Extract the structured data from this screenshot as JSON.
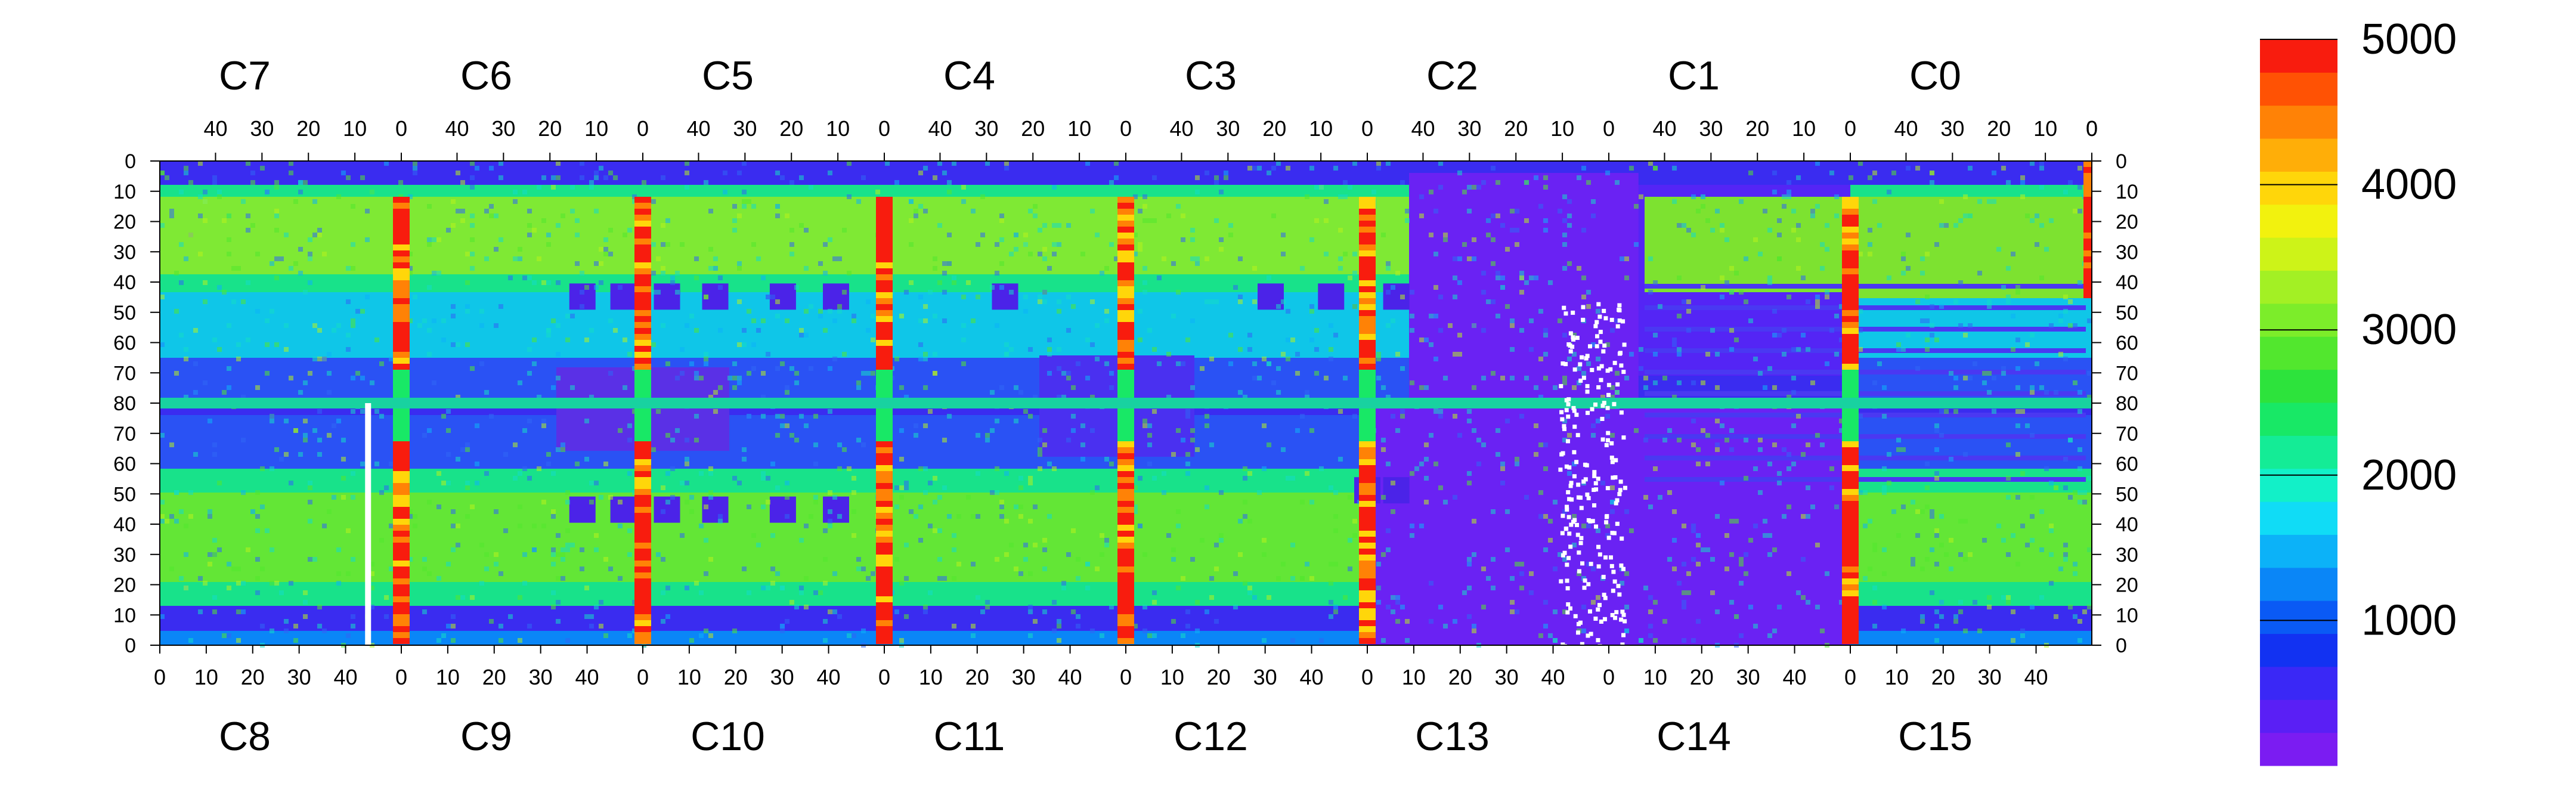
{
  "chart_data": {
    "type": "heatmap",
    "title": "",
    "xlabel": "",
    "ylabel": "",
    "top_chip_labels": [
      "C7",
      "C6",
      "C5",
      "C4",
      "C3",
      "C2",
      "C1",
      "C0"
    ],
    "bottom_chip_labels": [
      "C8",
      "C9",
      "C10",
      "C11",
      "C12",
      "C13",
      "C14",
      "C15"
    ],
    "top_axis_ticks_per_chip": [
      "40",
      "30",
      "20",
      "10",
      "0"
    ],
    "bottom_axis_ticks_per_chip": [
      "0",
      "10",
      "20",
      "30",
      "40"
    ],
    "y_ticks_upper": [
      "0",
      "10",
      "20",
      "30",
      "40",
      "50",
      "60",
      "70",
      "80"
    ],
    "y_ticks_lower": [
      "70",
      "60",
      "50",
      "40",
      "30",
      "20",
      "10",
      "0"
    ],
    "chip_columns": 52,
    "chip_rows": 80,
    "colorbar": {
      "ticks": [
        "1000",
        "2000",
        "3000",
        "4000",
        "5000"
      ],
      "range": [
        0,
        5000
      ],
      "palette": [
        "#7b1cf2",
        "#5a1ff5",
        "#3a28f6",
        "#1232f2",
        "#0a5af5",
        "#0a86f7",
        "#0cb2f8",
        "#10dcf6",
        "#12f0c8",
        "#14ec96",
        "#18e866",
        "#2de33c",
        "#52e72e",
        "#7ced2a",
        "#a3f024",
        "#cdf318",
        "#f2f20e",
        "#ffd60a",
        "#ffae08",
        "#ff8206",
        "#ff5204",
        "#f81c0e"
      ]
    },
    "regions": {
      "hot_column_chips": [
        "C9",
        "C10",
        "C11",
        "C12",
        "C13",
        "C15",
        "C0"
      ],
      "low_occupancy_chips": [
        "C13",
        "C14"
      ],
      "dead_columns_note": "white (no data) vertical strip in C8; scattered white pixels in C13"
    }
  }
}
